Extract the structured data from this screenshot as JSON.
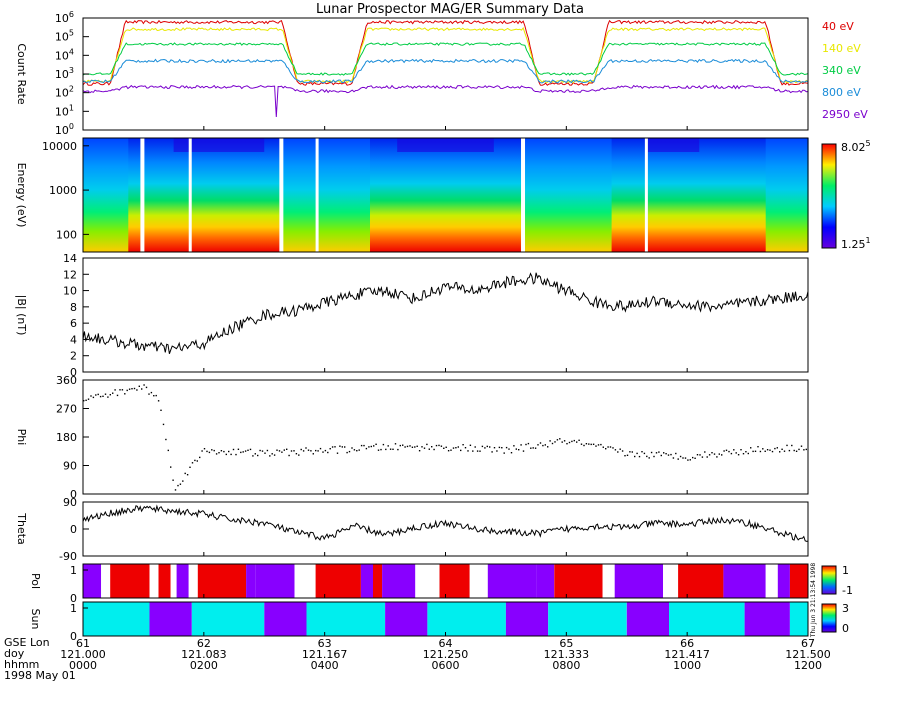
{
  "title": "Lunar Prospector MAG/ER Summary Data",
  "stamp": "Thu Jun 3 21:13:54 1998",
  "time_axis": {
    "row_labels": [
      "GSE Lon",
      "doy",
      "hhmm"
    ],
    "date": "1998 May 01",
    "ticks": [
      {
        "lon": "61",
        "doy": "121.000",
        "hhmm": "0000"
      },
      {
        "lon": "62",
        "doy": "121.083",
        "hhmm": "0200"
      },
      {
        "lon": "63",
        "doy": "121.167",
        "hhmm": "0400"
      },
      {
        "lon": "64",
        "doy": "121.250",
        "hhmm": "0600"
      },
      {
        "lon": "65",
        "doy": "121.333",
        "hhmm": "0800"
      },
      {
        "lon": "66",
        "doy": "121.417",
        "hhmm": "1000"
      },
      {
        "lon": "67",
        "doy": "121.500",
        "hhmm": "1200"
      }
    ]
  },
  "chart_data": [
    {
      "type": "line",
      "ylabel": "Count Rate",
      "yscale": "log",
      "ylim": [
        1,
        1000000
      ],
      "yticks": [
        {
          "base": "10",
          "exp": "0"
        },
        {
          "base": "10",
          "exp": "1"
        },
        {
          "base": "10",
          "exp": "2"
        },
        {
          "base": "10",
          "exp": "3"
        },
        {
          "base": "10",
          "exp": "4"
        },
        {
          "base": "10",
          "exp": "5"
        },
        {
          "base": "10",
          "exp": "6"
        }
      ],
      "legend": "right",
      "day_windows_hours": [
        [
          0.7,
          3.3
        ],
        [
          4.7,
          7.3
        ],
        [
          8.7,
          11.3
        ]
      ],
      "series": [
        {
          "name": "40 eV",
          "color": "#dd0000",
          "day_level": 600000,
          "night_level": 300,
          "noise": 0.08
        },
        {
          "name": "140 eV",
          "color": "#e8e800",
          "day_level": 250000,
          "night_level": 400,
          "noise": 0.07
        },
        {
          "name": "340 eV",
          "color": "#00cc44",
          "day_level": 40000,
          "night_level": 1000,
          "noise": 0.06
        },
        {
          "name": "800 eV",
          "color": "#1a8cd8",
          "day_level": 5000,
          "night_level": 400,
          "noise": 0.08
        },
        {
          "name": "2950 eV",
          "color": "#7a00cc",
          "day_level": 200,
          "night_level": 120,
          "noise": 0.08
        }
      ]
    },
    {
      "type": "heatmap",
      "ylabel": "Energy (eV)",
      "yscale": "log",
      "ylim": [
        40,
        15000
      ],
      "yticks": [
        "100",
        "1000",
        "10000"
      ],
      "colorbar": {
        "max": {
          "base": "8.02",
          "exp": "5"
        },
        "min": {
          "base": "1.25",
          "exp": "1"
        }
      },
      "data_gaps_hours": [
        0.95,
        1.75,
        3.25,
        3.85,
        7.25,
        9.3
      ]
    },
    {
      "type": "line",
      "ylabel": "|B| (nT)",
      "ylim": [
        0,
        14
      ],
      "yticks": [
        "0",
        "2",
        "4",
        "6",
        "8",
        "10",
        "12",
        "14"
      ],
      "x": [
        0,
        0.5,
        1,
        1.5,
        2,
        2.5,
        3,
        3.5,
        4,
        4.5,
        5,
        5.5,
        6,
        6.5,
        7,
        7.5,
        8,
        8.5,
        9,
        9.5,
        10,
        10.5,
        11,
        11.5,
        12
      ],
      "values": [
        4.5,
        3.8,
        3.2,
        2.8,
        3.5,
        5.5,
        7,
        7.5,
        8.5,
        9.5,
        10,
        9,
        10.5,
        10,
        11,
        11.5,
        10,
        8.5,
        8,
        8.8,
        8.2,
        8,
        8.5,
        9,
        9.5
      ]
    },
    {
      "type": "scatter",
      "ylabel": "Phi",
      "ylim": [
        0,
        360
      ],
      "yticks": [
        "0",
        "90",
        "180",
        "270",
        "360"
      ],
      "x": [
        0,
        0.5,
        1,
        1.25,
        1.5,
        1.75,
        2,
        3,
        4,
        5,
        6,
        7,
        8,
        9,
        10,
        11,
        12
      ],
      "values": [
        300,
        320,
        340,
        300,
        20,
        80,
        140,
        130,
        140,
        150,
        150,
        140,
        170,
        130,
        120,
        140,
        150
      ]
    },
    {
      "type": "line",
      "ylabel": "Theta",
      "ylim": [
        -90,
        90
      ],
      "yticks": [
        "-90",
        "0",
        "90"
      ],
      "x": [
        0,
        0.5,
        1,
        1.5,
        2,
        2.5,
        3,
        3.5,
        4,
        4.5,
        5,
        5.5,
        6,
        6.5,
        7,
        7.5,
        8,
        8.5,
        9,
        9.5,
        10,
        10.5,
        11,
        11.5,
        12
      ],
      "values": [
        30,
        55,
        70,
        60,
        50,
        30,
        20,
        -10,
        -30,
        10,
        -20,
        5,
        20,
        0,
        -10,
        -15,
        0,
        10,
        5,
        20,
        15,
        30,
        20,
        -10,
        -40
      ]
    },
    {
      "type": "heatmap",
      "ylabel": "Pol",
      "ylim": [
        0,
        1
      ],
      "colorbar": {
        "max": "1",
        "min": "-1"
      },
      "palette": {
        "away": "#ee0000",
        "toward": "#8800ff",
        "gap": "#ffffff"
      },
      "segments": [
        {
          "from": 0.0,
          "to": 0.3,
          "state": "toward"
        },
        {
          "from": 0.3,
          "to": 0.45,
          "state": "gap"
        },
        {
          "from": 0.45,
          "to": 1.1,
          "state": "away"
        },
        {
          "from": 1.1,
          "to": 1.25,
          "state": "gap"
        },
        {
          "from": 1.25,
          "to": 1.45,
          "state": "away"
        },
        {
          "from": 1.45,
          "to": 1.55,
          "state": "gap"
        },
        {
          "from": 1.55,
          "to": 1.75,
          "state": "toward"
        },
        {
          "from": 1.75,
          "to": 1.9,
          "state": "gap"
        },
        {
          "from": 1.9,
          "to": 2.7,
          "state": "away"
        },
        {
          "from": 2.7,
          "to": 2.85,
          "state": "toward"
        },
        {
          "from": 2.85,
          "to": 3.5,
          "state": "toward"
        },
        {
          "from": 3.5,
          "to": 3.85,
          "state": "gap"
        },
        {
          "from": 3.85,
          "to": 4.6,
          "state": "away"
        },
        {
          "from": 4.6,
          "to": 4.8,
          "state": "toward"
        },
        {
          "from": 4.8,
          "to": 4.95,
          "state": "away"
        },
        {
          "from": 4.95,
          "to": 5.5,
          "state": "toward"
        },
        {
          "from": 5.5,
          "to": 5.9,
          "state": "gap"
        },
        {
          "from": 5.9,
          "to": 6.4,
          "state": "away"
        },
        {
          "from": 6.4,
          "to": 6.7,
          "state": "gap"
        },
        {
          "from": 6.7,
          "to": 7.5,
          "state": "toward"
        },
        {
          "from": 7.5,
          "to": 7.8,
          "state": "toward"
        },
        {
          "from": 7.8,
          "to": 8.6,
          "state": "away"
        },
        {
          "from": 8.6,
          "to": 8.8,
          "state": "gap"
        },
        {
          "from": 8.8,
          "to": 9.6,
          "state": "toward"
        },
        {
          "from": 9.6,
          "to": 9.85,
          "state": "gap"
        },
        {
          "from": 9.85,
          "to": 10.6,
          "state": "away"
        },
        {
          "from": 10.6,
          "to": 10.8,
          "state": "toward"
        },
        {
          "from": 10.8,
          "to": 11.3,
          "state": "toward"
        },
        {
          "from": 11.3,
          "to": 11.5,
          "state": "gap"
        },
        {
          "from": 11.5,
          "to": 11.7,
          "state": "toward"
        },
        {
          "from": 11.7,
          "to": 12.0,
          "state": "away"
        }
      ]
    },
    {
      "type": "heatmap",
      "ylabel": "Sun",
      "ylim": [
        0,
        1
      ],
      "colorbar": {
        "max": "3",
        "min": "0"
      },
      "palette": {
        "sun": "#00eeee",
        "shadow": "#8800ff"
      },
      "segments": [
        {
          "from": 0.0,
          "to": 1.1,
          "state": "sun"
        },
        {
          "from": 1.1,
          "to": 1.8,
          "state": "shadow"
        },
        {
          "from": 1.8,
          "to": 3.0,
          "state": "sun"
        },
        {
          "from": 3.0,
          "to": 3.7,
          "state": "shadow"
        },
        {
          "from": 3.7,
          "to": 5.0,
          "state": "sun"
        },
        {
          "from": 5.0,
          "to": 5.7,
          "state": "shadow"
        },
        {
          "from": 5.7,
          "to": 7.0,
          "state": "sun"
        },
        {
          "from": 7.0,
          "to": 7.7,
          "state": "shadow"
        },
        {
          "from": 7.7,
          "to": 9.0,
          "state": "sun"
        },
        {
          "from": 9.0,
          "to": 9.7,
          "state": "shadow"
        },
        {
          "from": 9.7,
          "to": 10.95,
          "state": "sun"
        },
        {
          "from": 10.95,
          "to": 11.7,
          "state": "shadow"
        },
        {
          "from": 11.7,
          "to": 12.0,
          "state": "sun"
        }
      ]
    }
  ]
}
